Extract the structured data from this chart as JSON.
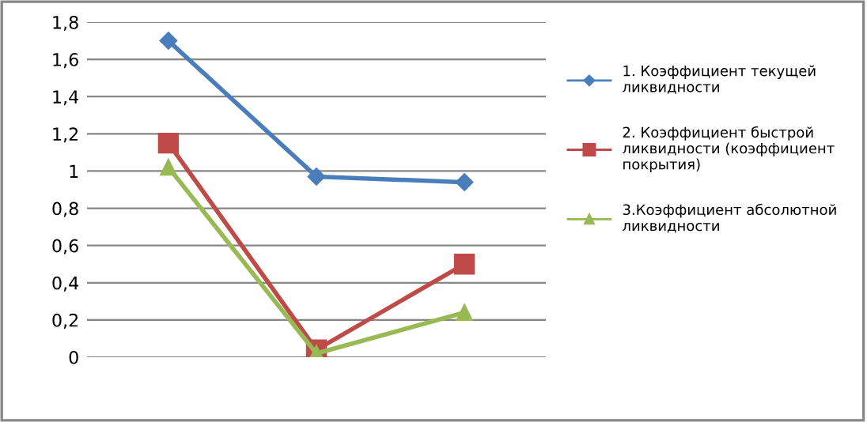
{
  "chart_data": {
    "type": "line",
    "categories": [
      null,
      null,
      null
    ],
    "series": [
      {
        "name": "1. Коэффициент текущей\nликвидности",
        "color": "#4a7ebb",
        "marker": "diamond",
        "values": [
          1.7,
          0.97,
          0.94
        ]
      },
      {
        "name": "2. Коэффициент быстрой\nликвидности (коэффициент\nпокрытия)",
        "color": "#be4b48",
        "marker": "square",
        "values": [
          1.15,
          0.04,
          0.5
        ]
      },
      {
        "name": "3.Коэффициент абсолютной\nликвидности",
        "color": "#98b954",
        "marker": "triangle",
        "values": [
          1.02,
          0.02,
          0.24
        ]
      }
    ],
    "ylim": [
      0,
      1.8
    ],
    "yticks": [
      {
        "value": 0,
        "label": "0"
      },
      {
        "value": 0.2,
        "label": "0,2"
      },
      {
        "value": 0.4,
        "label": "0,4"
      },
      {
        "value": 0.6,
        "label": "0,6"
      },
      {
        "value": 0.8,
        "label": "0,8"
      },
      {
        "value": 1,
        "label": "1"
      },
      {
        "value": 1.2,
        "label": "1,2"
      },
      {
        "value": 1.4,
        "label": "1,4"
      },
      {
        "value": 1.6,
        "label": "1,6"
      },
      {
        "value": 1.8,
        "label": "1,8"
      }
    ],
    "grid": "y",
    "legend": "right",
    "line_style": "solid"
  }
}
